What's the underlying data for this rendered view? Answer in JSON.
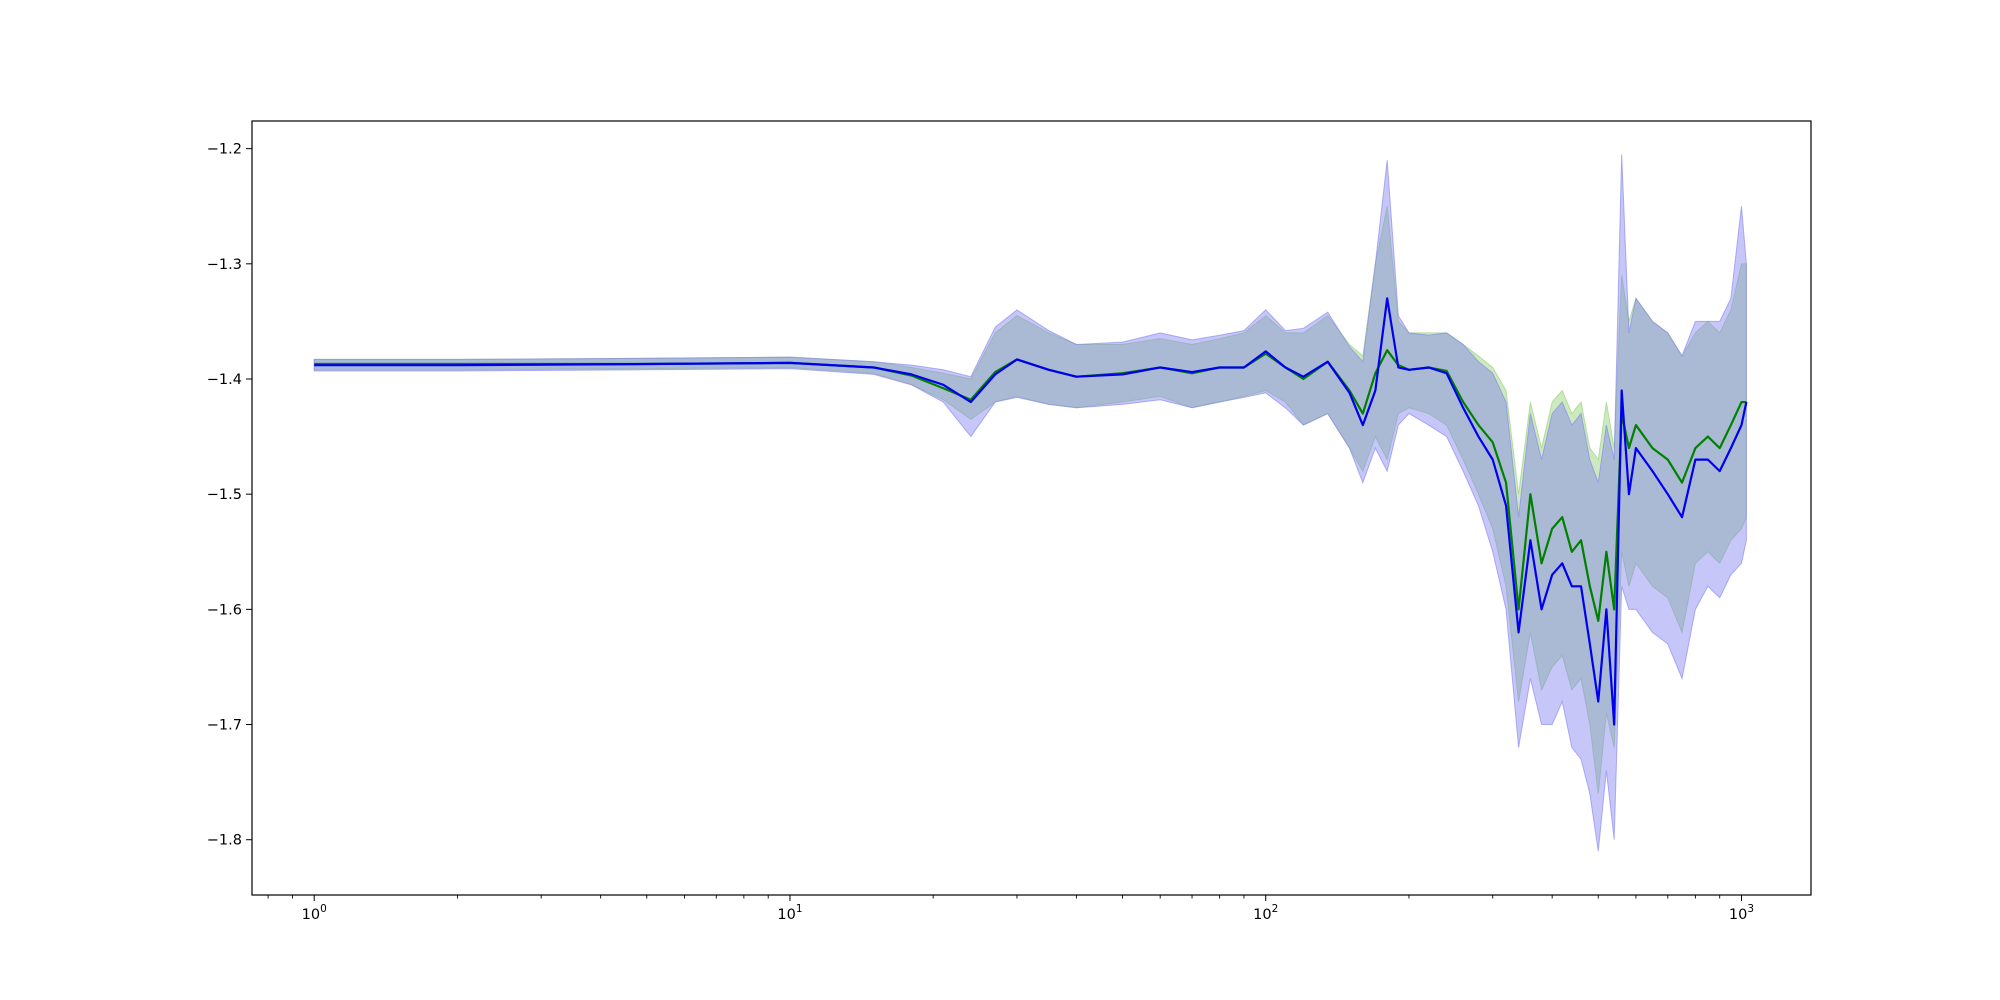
{
  "chart_data": {
    "type": "line",
    "title": "",
    "xlabel": "",
    "ylabel": "",
    "xscale": "log",
    "xlim": [
      0.74,
      1400
    ],
    "ylim": [
      -1.848,
      -1.176
    ],
    "grid": false,
    "x_ticks": [
      {
        "base": "10",
        "exp": "0",
        "value": 1
      },
      {
        "base": "10",
        "exp": "1",
        "value": 10
      },
      {
        "base": "10",
        "exp": "2",
        "value": 100
      },
      {
        "base": "10",
        "exp": "3",
        "value": 1000
      }
    ],
    "y_ticks": [
      {
        "label": "−1.2",
        "value": -1.2
      },
      {
        "label": "−1.3",
        "value": -1.3
      },
      {
        "label": "−1.4",
        "value": -1.4
      },
      {
        "label": "−1.5",
        "value": -1.5
      },
      {
        "label": "−1.6",
        "value": -1.6
      },
      {
        "label": "−1.7",
        "value": -1.7
      },
      {
        "label": "−1.8",
        "value": -1.8
      }
    ],
    "series": [
      {
        "color": "#008000",
        "band_color": "#90d070",
        "x": [
          1,
          2,
          5,
          10,
          15,
          18,
          21,
          24,
          27,
          30,
          35,
          40,
          50,
          60,
          70,
          80,
          90,
          100,
          110,
          120,
          135,
          150,
          160,
          170,
          180,
          190,
          200,
          220,
          240,
          260,
          280,
          300,
          320,
          340,
          360,
          380,
          400,
          420,
          440,
          460,
          480,
          500,
          520,
          540,
          560,
          580,
          600,
          650,
          700,
          750,
          800,
          850,
          900,
          950,
          1000,
          1024
        ],
        "y": [
          -1.387,
          -1.387,
          -1.387,
          -1.386,
          -1.39,
          -1.397,
          -1.408,
          -1.418,
          -1.394,
          -1.383,
          -1.392,
          -1.398,
          -1.395,
          -1.39,
          -1.395,
          -1.39,
          -1.39,
          -1.378,
          -1.39,
          -1.4,
          -1.385,
          -1.41,
          -1.43,
          -1.395,
          -1.375,
          -1.388,
          -1.392,
          -1.39,
          -1.393,
          -1.42,
          -1.44,
          -1.455,
          -1.49,
          -1.6,
          -1.5,
          -1.56,
          -1.53,
          -1.52,
          -1.55,
          -1.54,
          -1.58,
          -1.61,
          -1.55,
          -1.6,
          -1.43,
          -1.46,
          -1.44,
          -1.46,
          -1.47,
          -1.49,
          -1.46,
          -1.45,
          -1.46,
          -1.44,
          -1.42,
          -1.42
        ],
        "lower": [
          -1.392,
          -1.392,
          -1.391,
          -1.39,
          -1.395,
          -1.405,
          -1.418,
          -1.435,
          -1.42,
          -1.415,
          -1.422,
          -1.425,
          -1.42,
          -1.415,
          -1.425,
          -1.42,
          -1.415,
          -1.41,
          -1.42,
          -1.44,
          -1.43,
          -1.46,
          -1.48,
          -1.45,
          -1.47,
          -1.43,
          -1.425,
          -1.43,
          -1.44,
          -1.47,
          -1.5,
          -1.53,
          -1.58,
          -1.68,
          -1.62,
          -1.67,
          -1.65,
          -1.64,
          -1.67,
          -1.66,
          -1.7,
          -1.76,
          -1.69,
          -1.72,
          -1.55,
          -1.58,
          -1.56,
          -1.58,
          -1.59,
          -1.62,
          -1.56,
          -1.55,
          -1.56,
          -1.54,
          -1.53,
          -1.52
        ],
        "upper": [
          -1.383,
          -1.383,
          -1.382,
          -1.381,
          -1.385,
          -1.39,
          -1.395,
          -1.4,
          -1.36,
          -1.345,
          -1.36,
          -1.37,
          -1.37,
          -1.365,
          -1.37,
          -1.365,
          -1.36,
          -1.345,
          -1.36,
          -1.36,
          -1.345,
          -1.37,
          -1.38,
          -1.3,
          -1.25,
          -1.35,
          -1.36,
          -1.36,
          -1.36,
          -1.37,
          -1.38,
          -1.39,
          -1.41,
          -1.5,
          -1.42,
          -1.46,
          -1.42,
          -1.41,
          -1.43,
          -1.42,
          -1.46,
          -1.47,
          -1.42,
          -1.46,
          -1.31,
          -1.35,
          -1.33,
          -1.35,
          -1.36,
          -1.38,
          -1.36,
          -1.35,
          -1.36,
          -1.34,
          -1.3,
          -1.3
        ]
      },
      {
        "color": "#0000ee",
        "band_color": "#8080f0",
        "x": [
          1,
          2,
          5,
          10,
          15,
          18,
          21,
          24,
          27,
          30,
          35,
          40,
          50,
          60,
          70,
          80,
          90,
          100,
          110,
          120,
          135,
          150,
          160,
          170,
          180,
          190,
          200,
          220,
          240,
          260,
          280,
          300,
          320,
          340,
          360,
          380,
          400,
          420,
          440,
          460,
          480,
          500,
          520,
          540,
          560,
          580,
          600,
          650,
          700,
          750,
          800,
          850,
          900,
          950,
          1000,
          1024
        ],
        "y": [
          -1.388,
          -1.388,
          -1.387,
          -1.386,
          -1.39,
          -1.396,
          -1.405,
          -1.42,
          -1.396,
          -1.383,
          -1.392,
          -1.398,
          -1.396,
          -1.39,
          -1.394,
          -1.39,
          -1.39,
          -1.376,
          -1.39,
          -1.398,
          -1.385,
          -1.412,
          -1.44,
          -1.41,
          -1.33,
          -1.39,
          -1.392,
          -1.39,
          -1.395,
          -1.425,
          -1.45,
          -1.47,
          -1.51,
          -1.62,
          -1.54,
          -1.6,
          -1.57,
          -1.56,
          -1.58,
          -1.58,
          -1.63,
          -1.68,
          -1.6,
          -1.7,
          -1.41,
          -1.5,
          -1.46,
          -1.48,
          -1.5,
          -1.52,
          -1.47,
          -1.47,
          -1.48,
          -1.46,
          -1.44,
          -1.42
        ],
        "lower": [
          -1.393,
          -1.393,
          -1.392,
          -1.391,
          -1.396,
          -1.405,
          -1.42,
          -1.45,
          -1.42,
          -1.416,
          -1.422,
          -1.425,
          -1.422,
          -1.418,
          -1.425,
          -1.42,
          -1.416,
          -1.412,
          -1.425,
          -1.44,
          -1.43,
          -1.46,
          -1.49,
          -1.46,
          -1.48,
          -1.44,
          -1.43,
          -1.44,
          -1.45,
          -1.48,
          -1.51,
          -1.55,
          -1.6,
          -1.72,
          -1.66,
          -1.7,
          -1.7,
          -1.68,
          -1.72,
          -1.73,
          -1.76,
          -1.81,
          -1.74,
          -1.8,
          -1.58,
          -1.6,
          -1.6,
          -1.62,
          -1.63,
          -1.66,
          -1.6,
          -1.58,
          -1.59,
          -1.57,
          -1.56,
          -1.54
        ],
        "upper": [
          -1.383,
          -1.383,
          -1.382,
          -1.381,
          -1.385,
          -1.388,
          -1.392,
          -1.398,
          -1.355,
          -1.34,
          -1.358,
          -1.37,
          -1.368,
          -1.36,
          -1.366,
          -1.362,
          -1.358,
          -1.34,
          -1.358,
          -1.356,
          -1.342,
          -1.372,
          -1.385,
          -1.3,
          -1.21,
          -1.345,
          -1.36,
          -1.362,
          -1.36,
          -1.37,
          -1.385,
          -1.395,
          -1.42,
          -1.52,
          -1.43,
          -1.47,
          -1.43,
          -1.42,
          -1.44,
          -1.43,
          -1.47,
          -1.49,
          -1.44,
          -1.47,
          -1.205,
          -1.36,
          -1.33,
          -1.35,
          -1.36,
          -1.38,
          -1.35,
          -1.35,
          -1.35,
          -1.33,
          -1.25,
          -1.3
        ]
      }
    ]
  }
}
